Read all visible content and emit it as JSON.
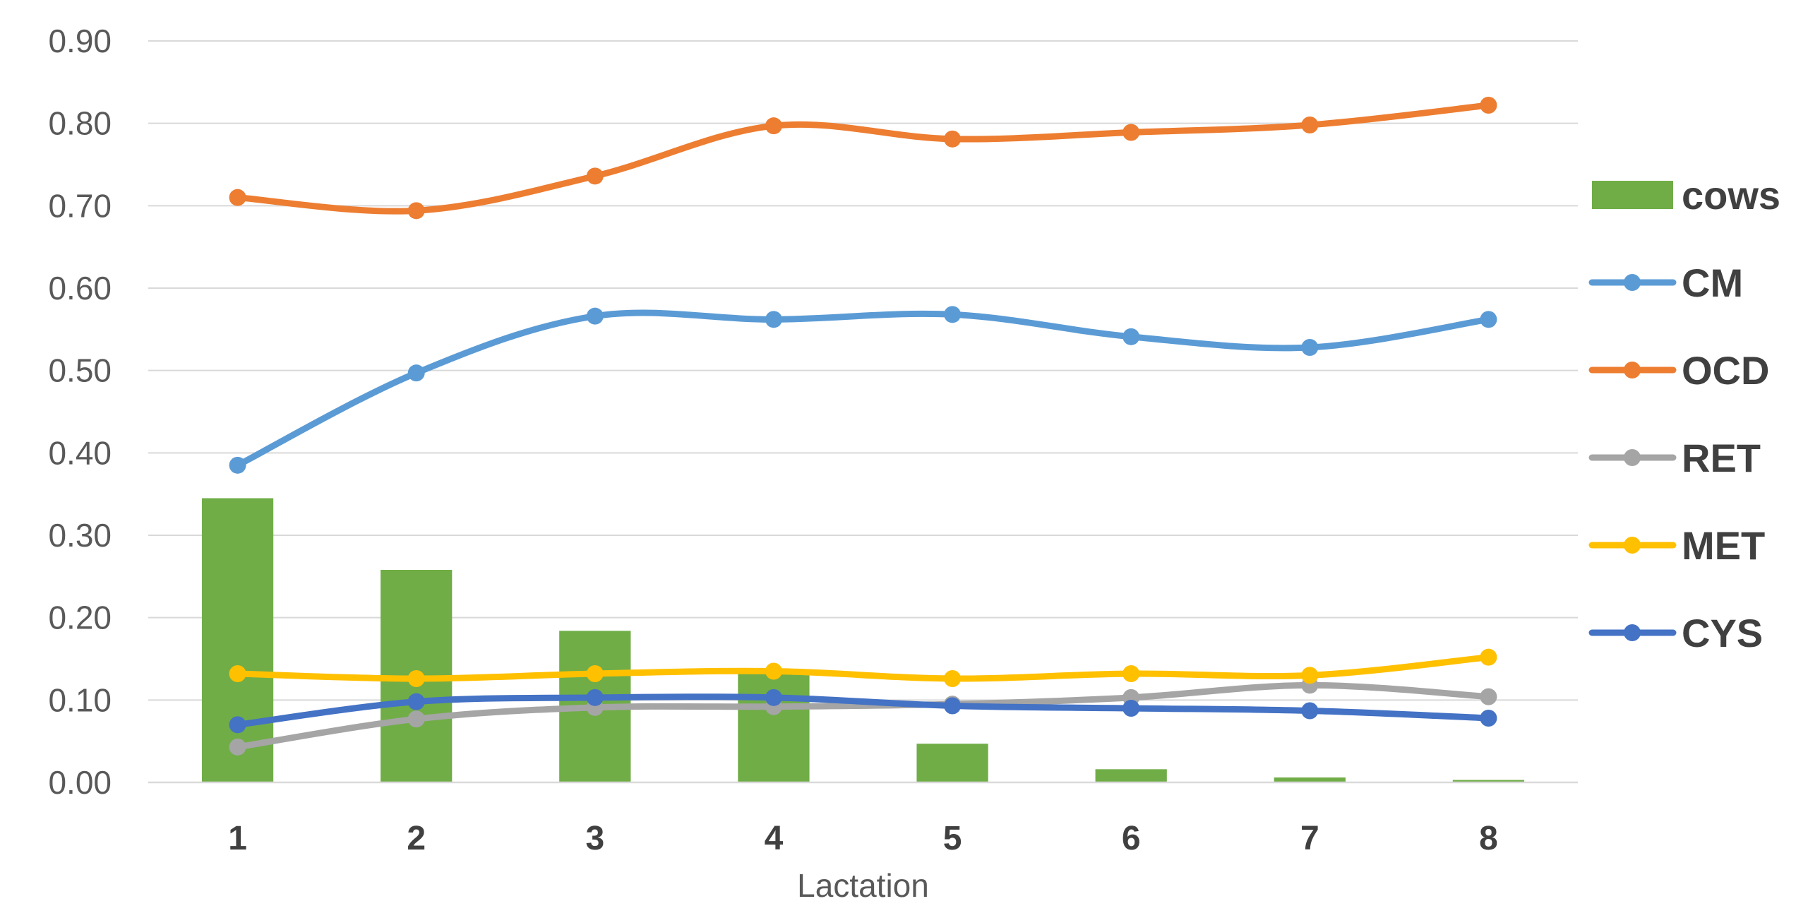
{
  "chart_data": {
    "type": "bar+line",
    "title": "",
    "xlabel": "Lactation",
    "ylabel": "",
    "ylim": [
      0,
      0.9
    ],
    "yticks": [
      "0.00",
      "0.10",
      "0.20",
      "0.30",
      "0.40",
      "0.50",
      "0.60",
      "0.70",
      "0.80",
      "0.90"
    ],
    "grid": true,
    "legend_position": "right",
    "categories": [
      "1",
      "2",
      "3",
      "4",
      "5",
      "6",
      "7",
      "8"
    ],
    "bars": {
      "name": "cows",
      "color": "#70AD47",
      "values": [
        0.345,
        0.258,
        0.184,
        0.132,
        0.047,
        0.016,
        0.006,
        0.003
      ]
    },
    "series": [
      {
        "name": "CM",
        "color": "#5B9BD5",
        "values": [
          0.385,
          0.497,
          0.566,
          0.562,
          0.568,
          0.541,
          0.528,
          0.562
        ]
      },
      {
        "name": "OCD",
        "color": "#ED7D31",
        "values": [
          0.71,
          0.694,
          0.736,
          0.797,
          0.781,
          0.789,
          0.798,
          0.822
        ]
      },
      {
        "name": "RET",
        "color": "#A5A5A5",
        "values": [
          0.043,
          0.077,
          0.091,
          0.092,
          0.095,
          0.103,
          0.118,
          0.104
        ]
      },
      {
        "name": "MET",
        "color": "#FFC000",
        "values": [
          0.132,
          0.126,
          0.132,
          0.135,
          0.126,
          0.132,
          0.13,
          0.152
        ]
      },
      {
        "name": "CYS",
        "color": "#4472C4",
        "values": [
          0.07,
          0.098,
          0.103,
          0.103,
          0.093,
          0.09,
          0.087,
          0.078
        ]
      }
    ]
  }
}
